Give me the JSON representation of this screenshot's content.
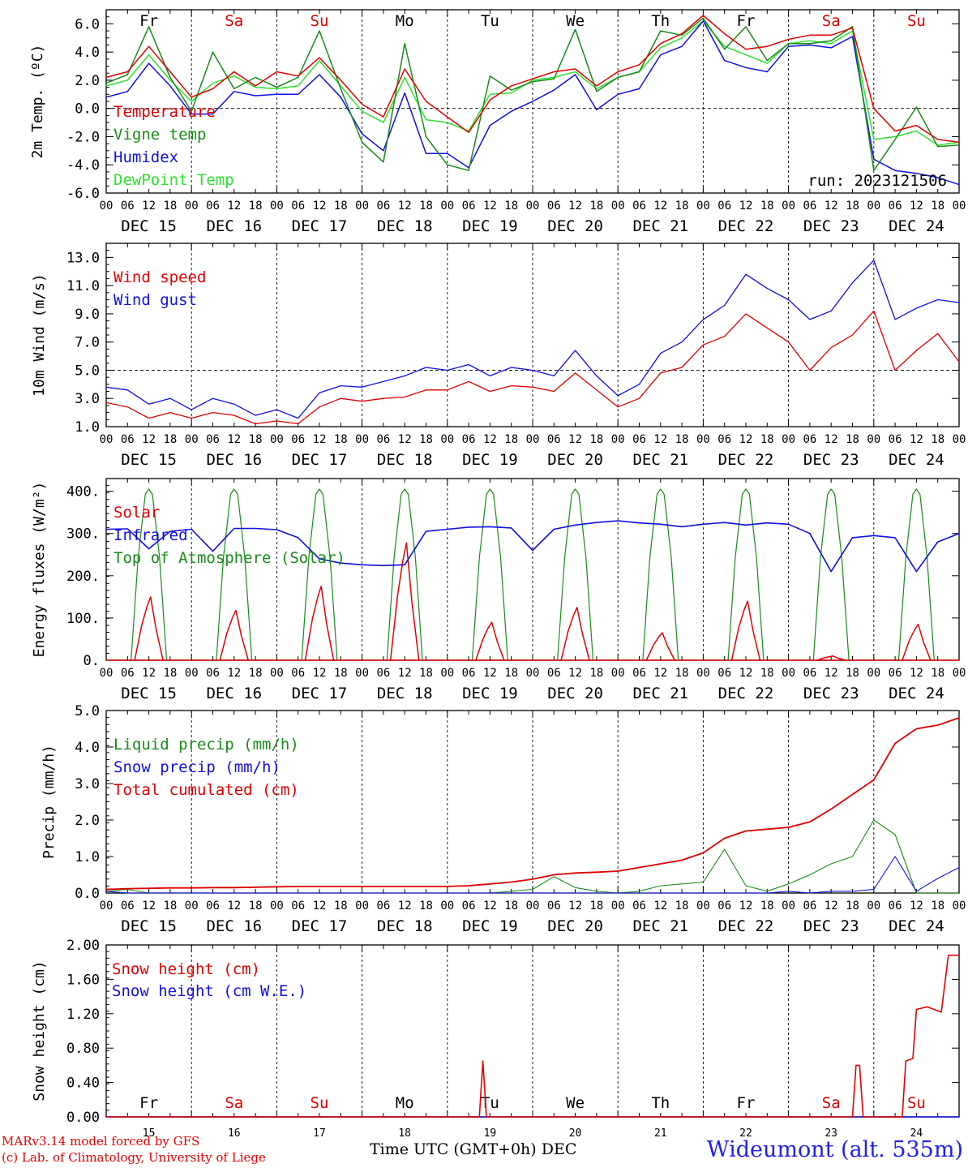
{
  "colors": {
    "red": "#e00000",
    "green": "#1a8a1a",
    "blue": "#1010e0",
    "lightgreen": "#30e030",
    "station": "#2020e8"
  },
  "days": [
    "DEC 15",
    "DEC 16",
    "DEC 17",
    "DEC 18",
    "DEC 19",
    "DEC 20",
    "DEC 21",
    "DEC 22",
    "DEC 23",
    "DEC 24"
  ],
  "hour_ticks": [
    "00",
    "06",
    "12",
    "18"
  ],
  "weekdays": [
    {
      "label": "Fr",
      "color": "black"
    },
    {
      "label": "Sa",
      "color": "red"
    },
    {
      "label": "Su",
      "color": "red"
    },
    {
      "label": "Mo",
      "color": "black"
    },
    {
      "label": "Tu",
      "color": "black"
    },
    {
      "label": "We",
      "color": "black"
    },
    {
      "label": "Th",
      "color": "black"
    },
    {
      "label": "Fr",
      "color": "black"
    },
    {
      "label": "Sa",
      "color": "red"
    },
    {
      "label": "Su",
      "color": "red"
    }
  ],
  "day_numbers": [
    "15",
    "16",
    "17",
    "18",
    "19",
    "20",
    "21",
    "22",
    "23",
    "24"
  ],
  "chart_data": [
    {
      "type": "line",
      "ylabel": "2m Temp. (ºC)",
      "ylim": [
        -6,
        7
      ],
      "yticks": [
        "-6.0",
        "-4.0",
        "-2.0",
        "0.0",
        "2.0",
        "4.0",
        "6.0"
      ],
      "ref_line": 0,
      "annotation": "run: 2023121506",
      "x_hours": [
        0,
        6,
        12,
        18,
        24,
        30,
        36,
        42,
        48,
        54,
        60,
        66,
        72,
        78,
        84,
        90,
        96,
        102,
        108,
        114,
        120,
        126,
        132,
        138,
        144,
        150,
        156,
        162,
        168,
        174,
        180,
        186,
        192,
        198,
        204,
        210,
        216,
        222,
        228,
        234,
        240
      ],
      "series": [
        {
          "name": "Temperature",
          "color": "red",
          "values": [
            2.2,
            2.6,
            4.4,
            2.6,
            0.8,
            1.4,
            2.6,
            1.6,
            2.6,
            2.3,
            3.6,
            2.0,
            0.3,
            -0.6,
            2.8,
            0.5,
            -0.6,
            -1.7,
            0.6,
            1.6,
            2.1,
            2.6,
            2.8,
            1.6,
            2.6,
            3.1,
            4.6,
            5.3,
            6.6,
            5.3,
            4.2,
            4.4,
            4.9,
            5.2,
            5.2,
            5.7,
            0.0,
            -1.6,
            -1.2,
            -2.2,
            -2.4
          ]
        },
        {
          "name": "Vigne temp",
          "color": "green",
          "values": [
            1.8,
            2.4,
            5.8,
            2.2,
            -0.2,
            4.0,
            1.4,
            2.2,
            1.5,
            2.2,
            5.5,
            1.4,
            -2.4,
            -3.8,
            4.6,
            -2.0,
            -4.0,
            -4.4,
            2.3,
            1.3,
            1.9,
            2.1,
            5.6,
            1.2,
            2.2,
            2.6,
            5.5,
            5.2,
            6.4,
            4.2,
            5.8,
            3.4,
            4.6,
            4.6,
            4.8,
            5.8,
            -4.4,
            -2.2,
            0.1,
            -2.7,
            -2.6
          ]
        },
        {
          "name": "Humidex",
          "color": "blue",
          "values": [
            0.8,
            1.2,
            3.2,
            1.6,
            -0.4,
            -0.4,
            1.2,
            0.9,
            1.0,
            1.0,
            2.4,
            0.8,
            -1.8,
            -3.0,
            1.1,
            -3.2,
            -3.2,
            -4.2,
            -1.2,
            -0.2,
            0.5,
            1.3,
            2.4,
            -0.1,
            1.0,
            1.4,
            3.8,
            4.4,
            6.2,
            3.4,
            2.9,
            2.6,
            4.4,
            4.5,
            4.3,
            5.1,
            -3.6,
            -4.4,
            -4.6,
            -4.9,
            -5.4
          ]
        },
        {
          "name": "DewPoint Temp",
          "color": "lightgreen",
          "values": [
            1.6,
            2.0,
            3.8,
            2.0,
            0.5,
            1.8,
            2.3,
            1.5,
            1.4,
            1.6,
            3.4,
            1.6,
            -0.2,
            -1.0,
            2.2,
            -0.8,
            -1.0,
            -1.6,
            1.0,
            1.1,
            2.0,
            2.2,
            2.6,
            1.4,
            2.2,
            2.6,
            4.3,
            5.0,
            6.2,
            4.4,
            3.8,
            3.2,
            4.6,
            4.8,
            4.6,
            5.5,
            -2.2,
            -2.0,
            -1.6,
            -2.6,
            -2.4
          ]
        }
      ]
    },
    {
      "type": "line",
      "ylabel": "10m Wind (m/s)",
      "ylim": [
        1,
        14
      ],
      "yticks": [
        "1.0",
        "3.0",
        "5.0",
        "7.0",
        "9.0",
        "11.0",
        "13.0"
      ],
      "ref_line": 5,
      "x_hours": [
        0,
        6,
        12,
        18,
        24,
        30,
        36,
        42,
        48,
        54,
        60,
        66,
        72,
        78,
        84,
        90,
        96,
        102,
        108,
        114,
        120,
        126,
        132,
        138,
        144,
        150,
        156,
        162,
        168,
        174,
        180,
        186,
        192,
        198,
        204,
        210,
        216,
        222,
        228,
        234,
        240
      ],
      "series": [
        {
          "name": "Wind speed",
          "color": "red",
          "values": [
            2.7,
            2.4,
            1.6,
            2.0,
            1.6,
            2.0,
            1.8,
            1.2,
            1.4,
            1.2,
            2.4,
            3.0,
            2.8,
            3.0,
            3.1,
            3.6,
            3.6,
            4.2,
            3.5,
            3.9,
            3.8,
            3.5,
            4.8,
            3.6,
            2.4,
            3.0,
            4.8,
            5.2,
            6.8,
            7.4,
            9.0,
            8.0,
            7.0,
            5.0,
            6.6,
            7.5,
            9.2,
            5.0,
            6.4,
            7.6,
            5.6
          ]
        },
        {
          "name": "Wind gust",
          "color": "blue",
          "values": [
            3.8,
            3.6,
            2.6,
            3.0,
            2.2,
            3.0,
            2.6,
            1.8,
            2.2,
            1.6,
            3.4,
            3.9,
            3.8,
            4.2,
            4.6,
            5.2,
            5.0,
            5.4,
            4.6,
            5.2,
            5.0,
            4.6,
            6.4,
            4.6,
            3.2,
            4.0,
            6.2,
            7.0,
            8.6,
            9.6,
            11.8,
            10.8,
            10.0,
            8.6,
            9.2,
            11.2,
            12.8,
            8.6,
            9.4,
            10.0,
            9.8
          ]
        }
      ]
    },
    {
      "type": "line",
      "ylabel": "Energy fluxes (W/m²)",
      "ylim": [
        0,
        430
      ],
      "yticks": [
        "0.",
        "100.",
        "200.",
        "300.",
        "400."
      ],
      "series": [
        {
          "name": "Solar",
          "color": "red",
          "peaks": [
            150,
            118,
            175,
            278,
            90,
            125,
            65,
            140,
            10,
            85
          ]
        },
        {
          "name": "Infrared",
          "color": "blue",
          "values": [
            310,
            311,
            264,
            305,
            310,
            258,
            312,
            312,
            309,
            290,
            240,
            230,
            226,
            224,
            226,
            305,
            310,
            315,
            316,
            313,
            260,
            310,
            320,
            326,
            330,
            325,
            322,
            316,
            322,
            326,
            320,
            325,
            322,
            300,
            210,
            290,
            295,
            290,
            210,
            280,
            300
          ]
        },
        {
          "name": "Top of Atmosphere (Solar)",
          "color": "green",
          "peak": 405
        }
      ]
    },
    {
      "type": "line",
      "ylabel": "Precip (mm/h)",
      "ylim": [
        0,
        5
      ],
      "yticks": [
        "0.0",
        "1.0",
        "2.0",
        "3.0",
        "4.0",
        "5.0"
      ],
      "x_hours": [
        0,
        6,
        12,
        18,
        24,
        30,
        36,
        42,
        48,
        54,
        60,
        66,
        72,
        78,
        84,
        90,
        96,
        102,
        108,
        114,
        120,
        126,
        132,
        138,
        144,
        150,
        156,
        162,
        168,
        174,
        180,
        186,
        192,
        198,
        204,
        210,
        216,
        222,
        228,
        234,
        240
      ],
      "series": [
        {
          "name": "Liquid precip (mm/h)",
          "color": "green",
          "values": [
            0.05,
            0.1,
            0,
            0,
            0,
            0,
            0,
            0,
            0,
            0,
            0,
            0,
            0,
            0,
            0,
            0,
            0,
            0,
            0,
            0.05,
            0.1,
            0.45,
            0.15,
            0.05,
            0,
            0.05,
            0.2,
            0.25,
            0.3,
            1.2,
            0.2,
            0.05,
            0.25,
            0.5,
            0.8,
            1.0,
            2.0,
            1.6,
            0,
            0,
            0
          ]
        },
        {
          "name": "Snow precip (mm/h)",
          "color": "blue",
          "values": [
            0.05,
            0,
            0,
            0,
            0,
            0,
            0,
            0,
            0,
            0,
            0,
            0,
            0,
            0,
            0,
            0,
            0,
            0,
            0,
            0,
            0,
            0,
            0,
            0,
            0,
            0,
            0,
            0,
            0,
            0,
            0,
            0,
            0.05,
            0,
            0.05,
            0.05,
            0.1,
            1.0,
            0.05,
            0.4,
            0.7
          ]
        },
        {
          "name": "Total cumulated (cm)",
          "color": "red",
          "values": [
            0.1,
            0.12,
            0.13,
            0.14,
            0.14,
            0.15,
            0.15,
            0.16,
            0.17,
            0.18,
            0.18,
            0.18,
            0.18,
            0.18,
            0.18,
            0.18,
            0.18,
            0.2,
            0.25,
            0.3,
            0.38,
            0.5,
            0.55,
            0.57,
            0.6,
            0.7,
            0.8,
            0.9,
            1.1,
            1.5,
            1.7,
            1.75,
            1.8,
            1.95,
            2.3,
            2.7,
            3.1,
            4.1,
            4.5,
            4.6,
            4.8
          ]
        }
      ]
    },
    {
      "type": "line",
      "ylabel": "Snow height (cm)",
      "ylim": [
        0,
        2
      ],
      "yticks": [
        "0.00",
        "0.40",
        "0.80",
        "1.20",
        "1.60",
        "2.00"
      ],
      "series": [
        {
          "name": "Snow height (cm)",
          "color": "red",
          "values": [
            [
              0,
              0
            ],
            [
              105,
              0
            ],
            [
              106,
              0.65
            ],
            [
              107,
              0
            ],
            [
              210,
              0
            ],
            [
              211,
              0.6
            ],
            [
              212,
              0.6
            ],
            [
              213,
              0
            ],
            [
              224,
              0
            ],
            [
              225,
              0.65
            ],
            [
              227,
              0.68
            ],
            [
              228,
              1.25
            ],
            [
              231,
              1.28
            ],
            [
              235,
              1.22
            ],
            [
              237,
              1.88
            ],
            [
              240,
              1.88
            ]
          ]
        },
        {
          "name": "Snow height (cm W.E.)",
          "color": "blue",
          "values": [
            [
              0,
              0
            ],
            [
              240,
              0
            ]
          ]
        }
      ]
    }
  ],
  "footer": {
    "model": "MARv3.14 model forced by GFS",
    "credit": "(c) Lab. of Climatology, University of Liege",
    "axis_title": "Time UTC (GMT+0h)",
    "axis_month": "DEC",
    "station": "Wideumont (alt. 535m)"
  }
}
